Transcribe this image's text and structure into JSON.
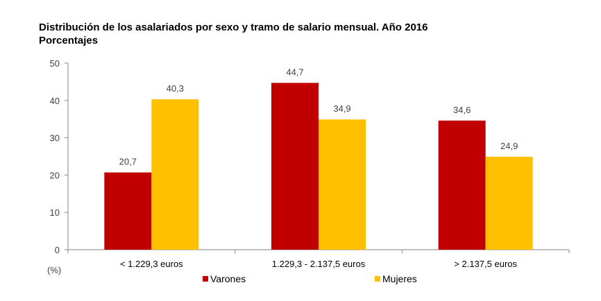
{
  "chart_data": {
    "type": "bar",
    "title": "Distribución de los asalariados por sexo y tramo de salario mensual. Año 2016",
    "subtitle": "Porcentajes",
    "unit_label": "(%)",
    "categories": [
      "< 1.229,3 euros",
      "1.229,3 - 2.137,5 euros",
      "> 2.137,5 euros"
    ],
    "series": [
      {
        "name": "Varones",
        "color": "#c00000",
        "values": [
          20.7,
          44.7,
          34.6
        ],
        "labels": [
          "20,7",
          "44,7",
          "34,6"
        ]
      },
      {
        "name": "Mujeres",
        "color": "#ffc000",
        "values": [
          40.3,
          34.9,
          24.9
        ],
        "labels": [
          "40,3",
          "34,9",
          "24,9"
        ]
      }
    ],
    "ylim": [
      0,
      50
    ],
    "yticks": [
      0,
      10,
      20,
      30,
      40,
      50
    ],
    "legend_position": "bottom-center",
    "grid": false
  }
}
